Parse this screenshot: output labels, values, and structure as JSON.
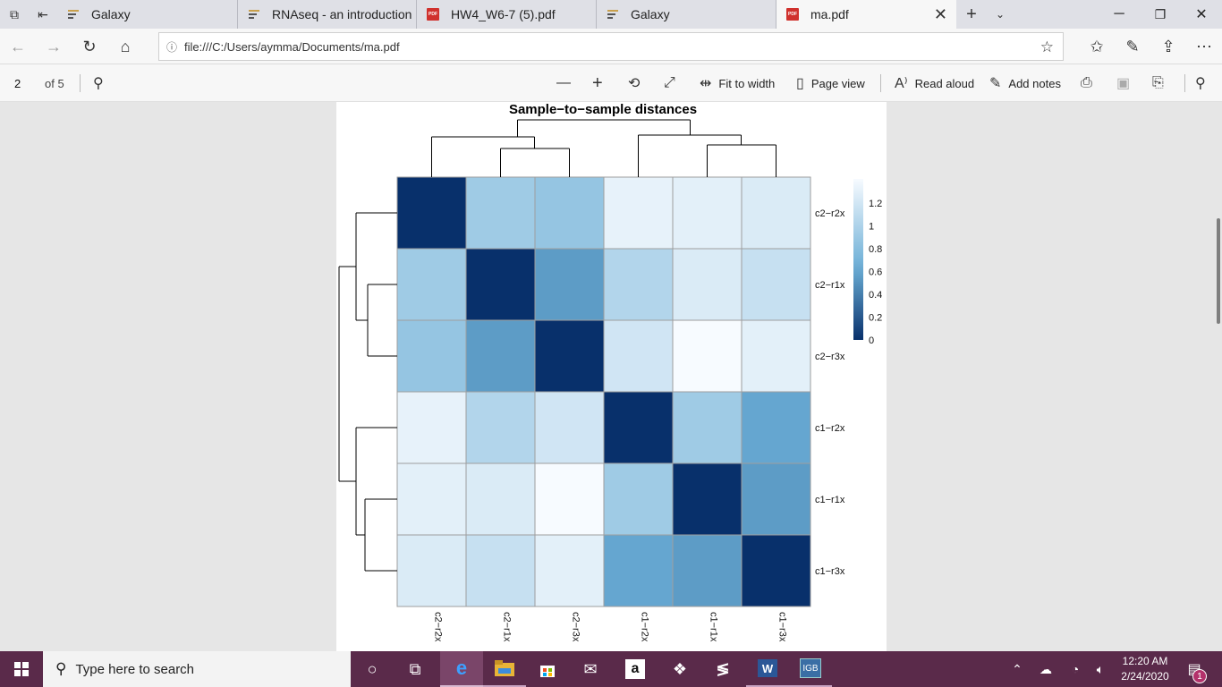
{
  "tabs": [
    {
      "title": "Galaxy",
      "icon": "galaxy-favicon",
      "active": false
    },
    {
      "title": "RNAseq - an introduction",
      "icon": "galaxy-favicon",
      "active": false
    },
    {
      "title": "HW4_W6-7 (5).pdf",
      "icon": "pdf-favicon",
      "active": false
    },
    {
      "title": "Galaxy",
      "icon": "galaxy-favicon",
      "active": false
    },
    {
      "title": "ma.pdf",
      "icon": "pdf-favicon",
      "active": true
    }
  ],
  "address": {
    "url": "file:///C:/Users/aymma/Documents/ma.pdf"
  },
  "pdf_toolbar": {
    "page_number": "2",
    "page_total": "of 5",
    "fit_to_width": "Fit to width",
    "page_view": "Page view",
    "read_aloud": "Read aloud",
    "add_notes": "Add notes"
  },
  "chart_data": {
    "type": "heatmap",
    "title": "Sample−to−sample distances",
    "rows": [
      "c2−r2x",
      "c2−r1x",
      "c2−r3x",
      "c1−r2x",
      "c1−r1x",
      "c1−r3x"
    ],
    "columns": [
      "c2−r2x",
      "c2−r1x",
      "c2−r3x",
      "c1−r2x",
      "c1−r1x",
      "c1−r3x"
    ],
    "values": [
      [
        0.0,
        0.85,
        0.8,
        1.22,
        1.2,
        1.15
      ],
      [
        0.85,
        0.0,
        0.5,
        0.95,
        1.15,
        1.05
      ],
      [
        0.8,
        0.5,
        0.0,
        1.1,
        1.3,
        1.2
      ],
      [
        1.22,
        0.95,
        1.1,
        0.0,
        0.85,
        0.55
      ],
      [
        1.2,
        1.15,
        1.3,
        0.85,
        0.0,
        0.5
      ],
      [
        1.15,
        1.05,
        1.2,
        0.55,
        0.5,
        0.0
      ]
    ],
    "colorbar": {
      "min": 0,
      "max": 1.3,
      "ticks": [
        "1.2",
        "1",
        "0.8",
        "0.6",
        "0.4",
        "0.2",
        "0"
      ]
    },
    "colors": {
      "low": "#08306b",
      "high": "#f7fbff"
    },
    "dendrogram": "hierarchical clustering on rows and columns"
  },
  "taskbar": {
    "search_placeholder": "Type here to search",
    "time": "12:20 AM",
    "date": "2/24/2020",
    "notifications": "1"
  },
  "accent": {
    "taskbar": "#5a2a4a",
    "active_task": "#7a4569"
  }
}
